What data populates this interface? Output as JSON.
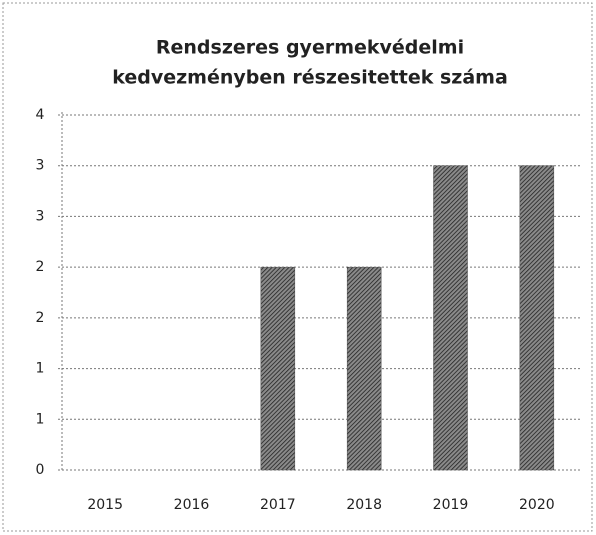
{
  "chart_data": {
    "type": "bar",
    "title": [
      "Rendszeres gyermekvédelmi",
      "kedvezményben részesitettek száma"
    ],
    "categories": [
      "2015",
      "2016",
      "2017",
      "2018",
      "2019",
      "2020"
    ],
    "values": [
      0,
      0,
      2,
      2,
      3,
      3
    ],
    "color": "#4a4a4a",
    "ylim": [
      0,
      3.5
    ],
    "yticks": [
      0,
      {
        "value": 0.5,
        "label": "1"
      },
      1,
      {
        "value": 1.5,
        "label": "2"
      },
      2,
      {
        "value": 2.5,
        "label": "3"
      },
      3,
      {
        "value": 3.5,
        "label": "4"
      }
    ],
    "grid": true
  }
}
